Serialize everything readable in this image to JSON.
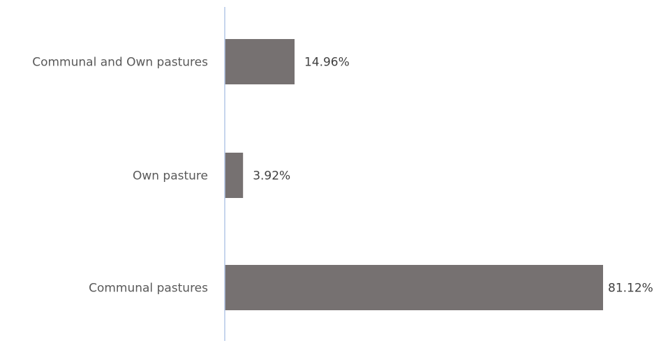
{
  "chart_data": {
    "type": "bar",
    "orientation": "horizontal",
    "categories": [
      "Communal and Own pastures",
      "Own pasture",
      "Communal pastures"
    ],
    "values": [
      14.96,
      3.92,
      81.12
    ],
    "data_labels": [
      "14.96%",
      "3.92%",
      "81.12%"
    ],
    "unit": "%",
    "title": "",
    "xlabel": "",
    "ylabel": "",
    "xlim": [
      0,
      81.12
    ],
    "grid": false,
    "legend": "none",
    "colors": {
      "bar": "#767171",
      "axis": "#b4c7e7",
      "category_text": "#595959",
      "label_text": "#404040"
    }
  }
}
